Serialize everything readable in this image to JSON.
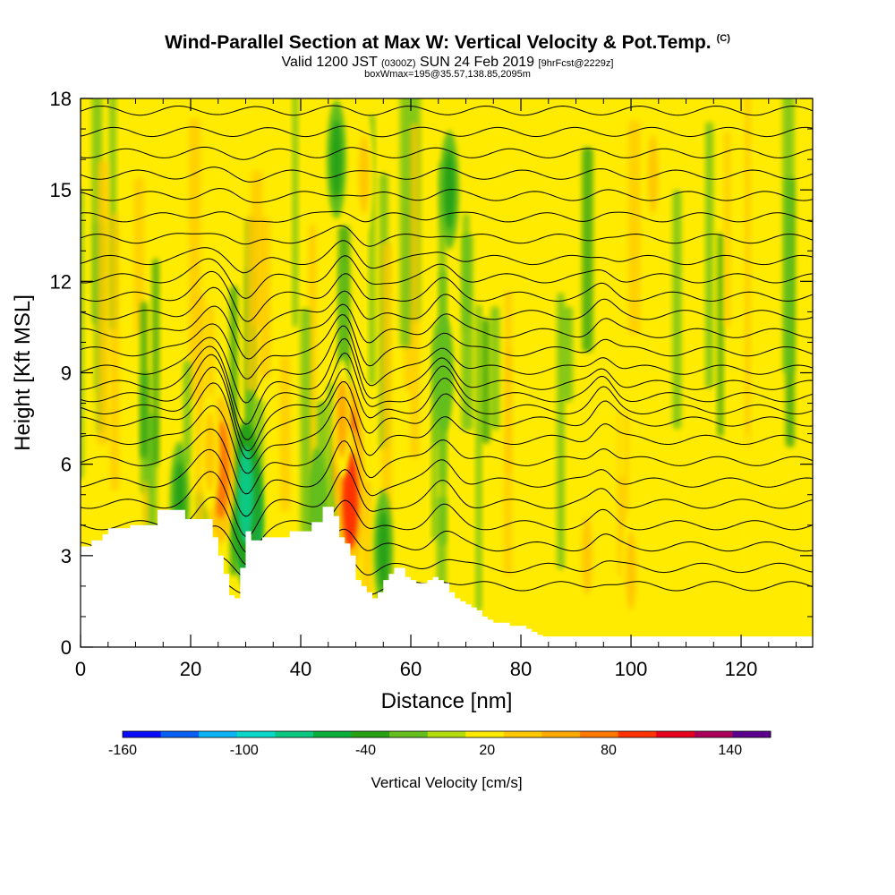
{
  "header": {
    "title": "Wind-Parallel Section at Max W: Vertical Velocity & Pot.Temp.",
    "copyright": "(C)",
    "subtitle_main": "Valid 1200 JST",
    "subtitle_utc": "(0300Z)",
    "subtitle_date": "SUN 24 Feb 2019",
    "subtitle_fcst": "[9hrFcst@2229z]",
    "boxinfo": "boxWmax=195@35.57,138.85,2095m"
  },
  "colorbar": {
    "title": "Vertical Velocity [cm/s]",
    "tick_labels": [
      "-160",
      "-100",
      "-40",
      "20",
      "80",
      "140"
    ],
    "tick_values": [
      -160,
      -100,
      -40,
      20,
      80,
      140
    ],
    "colors": [
      "#0a0aff",
      "#0a5ff5",
      "#0ab4f5",
      "#0ad7c8",
      "#0ac882",
      "#0aaf3c",
      "#28a014",
      "#64be1e",
      "#b4dc0a",
      "#ffeb00",
      "#ffc800",
      "#ffaa00",
      "#ff7800",
      "#ff3200",
      "#e6001e",
      "#aa005a",
      "#5a008c"
    ],
    "min": -160,
    "max": 160
  },
  "chart_data": {
    "type": "heatmap",
    "title": "Wind-Parallel Section at Max W: Vertical Velocity & Pot.Temp.",
    "xlabel": "Distance [nm]",
    "ylabel": "Height [Kft MSL]",
    "xlim": [
      0,
      133
    ],
    "ylim": [
      0,
      18
    ],
    "x_ticks": [
      0,
      20,
      40,
      60,
      80,
      100,
      120
    ],
    "x_tick_labels": [
      "0",
      "20",
      "40",
      "60",
      "80",
      "100",
      "120"
    ],
    "y_ticks": [
      0,
      3,
      6,
      9,
      12,
      15,
      18
    ],
    "y_tick_labels": [
      "0",
      "3",
      "6",
      "9",
      "12",
      "15",
      "18"
    ],
    "background_value_cm_s": 15,
    "w_features": [
      {
        "x": 30.5,
        "y": 4.2,
        "w_cm_s": -115
      },
      {
        "x": 30.0,
        "y": 5.0,
        "w_cm_s": -70
      },
      {
        "x": 25.5,
        "y": 5.8,
        "w_cm_s": 70
      },
      {
        "x": 23.5,
        "y": 6.4,
        "w_cm_s": 45
      },
      {
        "x": 48.5,
        "y": 6.3,
        "w_cm_s": 105
      },
      {
        "x": 49.0,
        "y": 4.8,
        "w_cm_s": 85
      },
      {
        "x": 47.5,
        "y": 7.5,
        "w_cm_s": 50
      },
      {
        "x": 18.0,
        "y": 4.8,
        "w_cm_s": -30
      },
      {
        "x": 43.0,
        "y": 4.6,
        "w_cm_s": -25
      },
      {
        "x": 55.0,
        "y": 3.2,
        "w_cm_s": -35
      },
      {
        "x": 67.0,
        "y": 15.0,
        "w_cm_s": -40
      },
      {
        "x": 66.0,
        "y": 9.0,
        "w_cm_s": -20
      },
      {
        "x": 46.5,
        "y": 16.0,
        "w_cm_s": -30
      },
      {
        "x": 51.5,
        "y": 15.5,
        "w_cm_s": 40
      },
      {
        "x": 104.0,
        "y": 15.5,
        "w_cm_s": 35
      },
      {
        "x": 92.0,
        "y": 3.0,
        "w_cm_s": 40
      },
      {
        "x": 100.0,
        "y": 2.5,
        "w_cm_s": 35
      }
    ],
    "terrain_kft": {
      "x": [
        0,
        2,
        4,
        5,
        9,
        14,
        19,
        23,
        24,
        25,
        26,
        27,
        28,
        29,
        30,
        31,
        33,
        38,
        42,
        44,
        45,
        46,
        47,
        48,
        49,
        50,
        51,
        52,
        53,
        54,
        55,
        56,
        57,
        58,
        59,
        60,
        61,
        62,
        63,
        64,
        65,
        66,
        67,
        68,
        69,
        70,
        71,
        72,
        73,
        74,
        75,
        76,
        78,
        80,
        81,
        82,
        83,
        84,
        85,
        133
      ],
      "y": [
        3.3,
        3.5,
        3.7,
        3.9,
        4.0,
        4.5,
        4.2,
        4.2,
        3.6,
        3.0,
        2.4,
        1.7,
        1.6,
        2.6,
        3.8,
        3.5,
        3.6,
        3.8,
        4.1,
        4.6,
        4.6,
        4.3,
        3.6,
        3.4,
        3.0,
        2.2,
        2.0,
        1.8,
        1.6,
        1.8,
        2.2,
        2.4,
        2.6,
        2.6,
        2.3,
        2.2,
        2.1,
        2.1,
        2.2,
        2.3,
        2.2,
        2.1,
        1.8,
        1.6,
        1.5,
        1.4,
        1.3,
        1.2,
        1.0,
        0.9,
        0.8,
        0.8,
        0.7,
        0.7,
        0.6,
        0.5,
        0.4,
        0.35,
        0.35,
        0.35
      ]
    },
    "potential_temperature_contours": {
      "series": [
        {
          "base_height_kft": 2.0
        },
        {
          "base_height_kft": 2.6
        },
        {
          "base_height_kft": 3.3
        },
        {
          "base_height_kft": 4.0
        },
        {
          "base_height_kft": 4.7
        },
        {
          "base_height_kft": 5.4
        },
        {
          "base_height_kft": 6.1
        },
        {
          "base_height_kft": 6.8
        },
        {
          "base_height_kft": 7.4
        },
        {
          "base_height_kft": 7.8
        },
        {
          "base_height_kft": 8.2
        },
        {
          "base_height_kft": 8.6
        },
        {
          "base_height_kft": 9.1
        },
        {
          "base_height_kft": 9.7
        },
        {
          "base_height_kft": 10.3
        },
        {
          "base_height_kft": 10.9
        },
        {
          "base_height_kft": 11.5
        },
        {
          "base_height_kft": 12.1
        },
        {
          "base_height_kft": 12.7
        },
        {
          "base_height_kft": 13.4
        },
        {
          "base_height_kft": 14.1
        },
        {
          "base_height_kft": 14.8
        },
        {
          "base_height_kft": 15.5
        },
        {
          "base_height_kft": 16.2
        },
        {
          "base_height_kft": 16.9
        },
        {
          "base_height_kft": 17.6
        }
      ]
    }
  }
}
